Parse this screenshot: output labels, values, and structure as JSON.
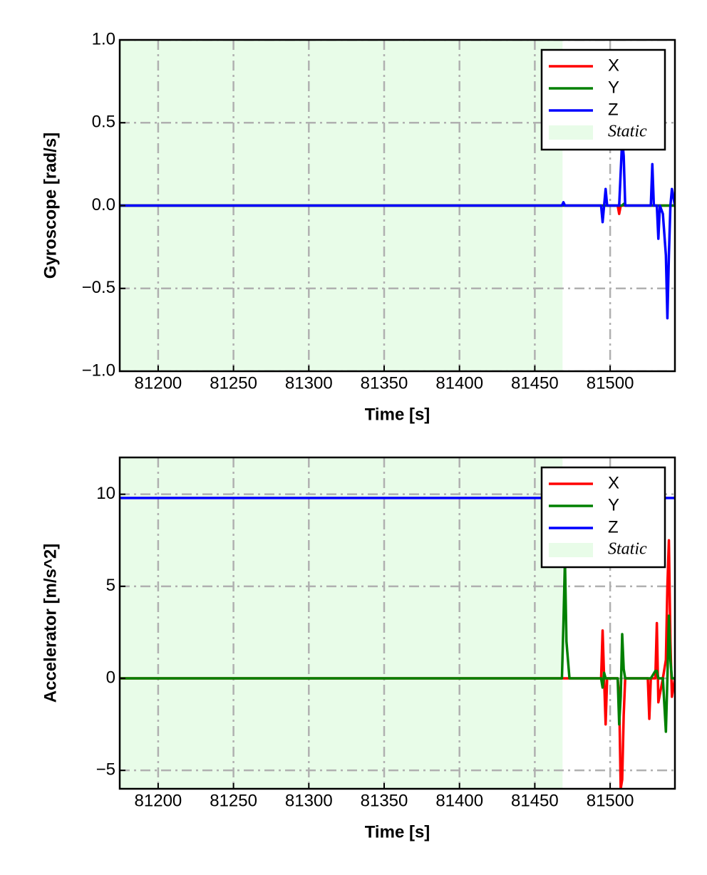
{
  "chart_data": [
    {
      "type": "line",
      "xlabel": "Time [s]",
      "ylabel": "Gyroscope [rad/s]",
      "x": [
        81175,
        81300,
        81468,
        81469,
        81470,
        81494,
        81495,
        81496,
        81497,
        81498,
        81505,
        81506,
        81507,
        81508,
        81509,
        81510,
        81512,
        81527,
        81528,
        81529,
        81531,
        81532,
        81533,
        81535,
        81537,
        81538,
        81539,
        81540,
        81541,
        81543
      ],
      "series": [
        {
          "name": "X",
          "color": "#ff0000",
          "values": [
            0,
            0,
            0,
            0,
            0,
            0,
            0,
            0,
            0,
            0,
            0,
            -0.05,
            0,
            0,
            0,
            0,
            0,
            0,
            0,
            0,
            0,
            0,
            0,
            0,
            0,
            0,
            0,
            0,
            0,
            0
          ]
        },
        {
          "name": "Y",
          "color": "#008000",
          "values": [
            0,
            0,
            0,
            0,
            0,
            0,
            0,
            0,
            0,
            0,
            0,
            0,
            0,
            0,
            0.01,
            0,
            0,
            0,
            0,
            0,
            0,
            0,
            0,
            0,
            0,
            0,
            0,
            0,
            0,
            0
          ]
        },
        {
          "name": "Z",
          "color": "#0000ff",
          "values": [
            0,
            0,
            0,
            0.02,
            0,
            0,
            -0.1,
            0,
            0.1,
            0,
            0,
            0,
            0.2,
            0.4,
            0.3,
            0,
            0,
            0,
            0.25,
            0,
            0,
            -0.2,
            0,
            -0.05,
            -0.3,
            -0.68,
            -0.3,
            0,
            0.1,
            0
          ]
        }
      ],
      "span": {
        "name": "Static",
        "color": "#e8fce8",
        "start": 81174.5,
        "end": 81468.4
      },
      "xlim": [
        81174.5,
        81543
      ],
      "xticks": [
        81200,
        81250,
        81300,
        81350,
        81400,
        81450,
        81500
      ],
      "ylim": [
        -1,
        1
      ],
      "yticks": [
        {
          "value": -1,
          "label": "−1.0"
        },
        {
          "value": -0.5,
          "label": "−0.5"
        },
        {
          "value": 0,
          "label": "0.0"
        },
        {
          "value": 0.5,
          "label": "0.5"
        },
        {
          "value": 1,
          "label": "1.0"
        }
      ],
      "grid": true,
      "legend": "upper right"
    },
    {
      "type": "line",
      "xlabel": "Time [s]",
      "ylabel": "Accelerator [m/s^2]",
      "x": [
        81175,
        81300,
        81468,
        81469,
        81470,
        81471,
        81473,
        81494,
        81495,
        81496,
        81497,
        81498,
        81505,
        81506,
        81507,
        81508,
        81509,
        81510,
        81525,
        81526,
        81527,
        81530,
        81531,
        81532,
        81535,
        81537,
        81538,
        81539,
        81540,
        81541,
        81543
      ],
      "series": [
        {
          "name": "X",
          "color": "#ff0000",
          "values": [
            0,
            0,
            0,
            0,
            0,
            0,
            0,
            0,
            2.6,
            0,
            -2.5,
            0,
            0,
            -1,
            -6,
            -5.5,
            -2,
            0,
            0,
            -2.2,
            0,
            0,
            3,
            -1.3,
            0,
            1,
            5,
            7.5,
            2,
            -1,
            0
          ]
        },
        {
          "name": "Y",
          "color": "#008000",
          "values": [
            0,
            0,
            0,
            3,
            6.5,
            2,
            0,
            0,
            -0.5,
            0.3,
            0,
            0,
            0,
            -2.5,
            -1,
            2.4,
            0.5,
            0,
            0,
            0,
            0,
            0.4,
            0.4,
            0,
            0,
            -2.9,
            0,
            3.4,
            1,
            0,
            0
          ]
        },
        {
          "name": "Z",
          "color": "#0000ff",
          "values": [
            9.8,
            9.8,
            9.8,
            9.8,
            9.8,
            9.8,
            9.8,
            9.8,
            9.8,
            9.8,
            9.8,
            9.8,
            9.8,
            9.8,
            9.8,
            9.8,
            9.8,
            9.8,
            9.8,
            9.8,
            9.8,
            9.8,
            9.8,
            9.8,
            9.8,
            9.8,
            9.8,
            9.8,
            9.8,
            9.8,
            9.8
          ]
        }
      ],
      "span": {
        "name": "Static",
        "color": "#e8fce8",
        "start": 81174.5,
        "end": 81468.4
      },
      "xlim": [
        81174.5,
        81543
      ],
      "xticks": [
        81200,
        81250,
        81300,
        81350,
        81400,
        81450,
        81500
      ],
      "ylim": [
        -6,
        12
      ],
      "yticks": [
        {
          "value": -5,
          "label": "−5"
        },
        0,
        5,
        10
      ],
      "grid": true,
      "legend": "upper right"
    }
  ]
}
